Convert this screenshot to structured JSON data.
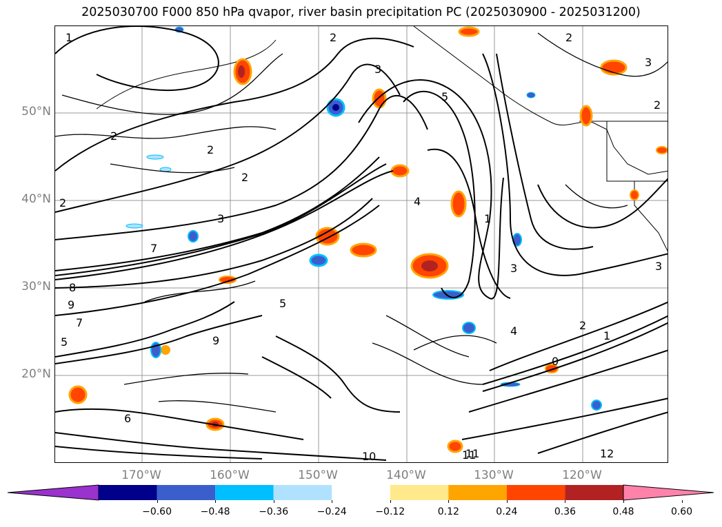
{
  "title": "2025030700 F000 850 hPa qvapor, river basin precipitation PC (2025030900 - 2025031200)",
  "map": {
    "lat_labels": [
      "50°N",
      "40°N",
      "30°N",
      "20°N"
    ],
    "lon_labels": [
      "170°W",
      "160°W",
      "150°W",
      "140°W",
      "130°W",
      "120°W"
    ],
    "contour_labels": [
      "1",
      "2",
      "3",
      "5",
      "2",
      "2",
      "2",
      "2",
      "2",
      "4",
      "7",
      "9",
      "11",
      "10",
      "8",
      "6",
      "3",
      "5",
      "4",
      "0",
      "1",
      "2",
      "3",
      "1",
      "7",
      "5",
      "9",
      "11",
      "12",
      "3",
      "3",
      "2"
    ]
  },
  "colorbar": {
    "tick_labels": [
      "−0.60",
      "−0.48",
      "−0.36",
      "−0.24",
      "−0.12",
      "0.12",
      "0.24",
      "0.36",
      "0.48",
      "0.60"
    ],
    "colors": [
      "#9a32cd",
      "#00008b",
      "#3a5fcd",
      "#00bfff",
      "#b0e2ff",
      "#ffffff",
      "#ffe98a",
      "#ffa500",
      "#ff4500",
      "#b22222",
      "#ff82ab"
    ]
  }
}
